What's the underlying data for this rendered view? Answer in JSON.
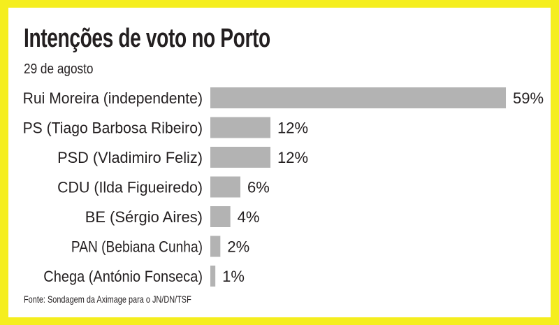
{
  "chart_data": {
    "type": "bar",
    "orientation": "horizontal",
    "title": "Intenções de voto no Porto",
    "subtitle": "29 de agosto",
    "categories": [
      "Rui Moreira (independente)",
      "PS (Tiago Barbosa Ribeiro)",
      "PSD (Vladimiro Feliz)",
      "CDU (Ilda Figueiredo)",
      "BE (Sérgio Aires)",
      "PAN (Bebiana Cunha)",
      "Chega (António Fonseca)"
    ],
    "values": [
      59,
      12,
      12,
      6,
      4,
      2,
      1
    ],
    "value_labels": [
      "59%",
      "12%",
      "12%",
      "6%",
      "4%",
      "2%",
      "1%"
    ],
    "unit": "%",
    "source": "Fonte: Sondagem da Aximage para o JN/DN/TSF",
    "colors": {
      "bar": "#b3b3b3",
      "background": "#f5ee1e",
      "card": "#ffffff",
      "text": "#231f20"
    }
  }
}
